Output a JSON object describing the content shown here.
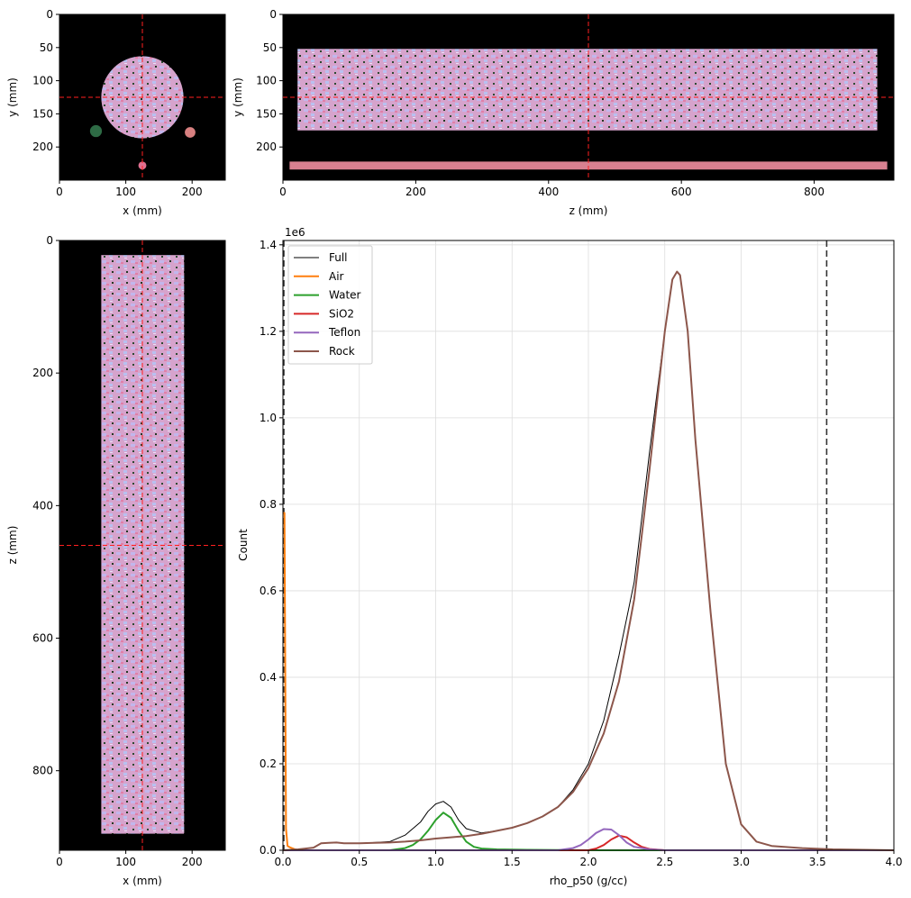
{
  "chart_data": [
    {
      "type": "image",
      "panel": "axial-slice",
      "xlabel": "x (mm)",
      "ylabel": "y (mm)",
      "xlim": [
        0,
        250
      ],
      "ylim": [
        250,
        0
      ],
      "xticks": [
        0,
        100,
        200
      ],
      "yticks": [
        0,
        50,
        100,
        150,
        200
      ],
      "crosshair": {
        "x": 125,
        "y": 125
      },
      "crosshair_color": "#ff2020",
      "features": [
        {
          "name": "rock-core",
          "shape": "circle",
          "cx": 125,
          "cy": 125,
          "r": 62,
          "color": "#d9a0c8"
        },
        {
          "name": "water-phantom",
          "shape": "circle",
          "cx": 55,
          "cy": 176,
          "r": 9,
          "color": "#2e6b45"
        },
        {
          "name": "teflon-phantom",
          "shape": "circle",
          "cx": 197,
          "cy": 178,
          "r": 8,
          "color": "#d88080"
        },
        {
          "name": "sio2-phantom",
          "shape": "circle",
          "cx": 125,
          "cy": 228,
          "r": 6,
          "color": "#e07090"
        }
      ]
    },
    {
      "type": "image",
      "panel": "side-slice",
      "xlabel": "z (mm)",
      "ylabel": "y (mm)",
      "xlim": [
        0,
        920
      ],
      "ylim": [
        250,
        0
      ],
      "xticks": [
        0,
        200,
        400,
        600,
        800
      ],
      "yticks": [
        0,
        50,
        100,
        150,
        200
      ],
      "crosshair": {
        "x": 460,
        "y": 125
      },
      "crosshair_color": "#ff2020",
      "features": [
        {
          "name": "rock-core",
          "shape": "rect",
          "x0": 22,
          "x1": 895,
          "y0": 52,
          "y1": 175,
          "color": "#d9a0c8"
        },
        {
          "name": "phantom-strip",
          "shape": "rect",
          "x0": 10,
          "x1": 910,
          "y0": 222,
          "y1": 234,
          "color": "#d88090"
        }
      ]
    },
    {
      "type": "image",
      "panel": "front-slice",
      "xlabel": "x (mm)",
      "ylabel": "z (mm)",
      "xlim": [
        0,
        250
      ],
      "ylim": [
        920,
        0
      ],
      "xticks": [
        0,
        100,
        200
      ],
      "yticks": [
        0,
        200,
        400,
        600,
        800
      ],
      "crosshair": {
        "x": 125,
        "y": 460
      },
      "crosshair_color": "#ff2020",
      "features": [
        {
          "name": "rock-core",
          "shape": "rect",
          "x0": 63,
          "x1": 188,
          "y0": 22,
          "y1": 895,
          "color": "#d9a0c8"
        }
      ]
    },
    {
      "type": "line",
      "panel": "histogram",
      "xlabel": "rho_p50 (g/cc)",
      "ylabel": "Count",
      "xlim": [
        0,
        4.0
      ],
      "ylim": [
        0,
        1.41
      ],
      "y_scale_label": "1e6",
      "xticks": [
        "0.0",
        "0.5",
        "1.0",
        "1.5",
        "2.0",
        "2.5",
        "3.0",
        "3.5",
        "4.0"
      ],
      "yticks": [
        "0.0",
        "0.2",
        "0.4",
        "0.6",
        "0.8",
        "1.0",
        "1.2",
        "1.4"
      ],
      "grid": true,
      "legend_position": "top-left",
      "vlines": [
        0.0,
        3.56
      ],
      "series": [
        {
          "name": "Full",
          "color": "#000000",
          "width": 1,
          "x": [
            0.0,
            0.1,
            0.2,
            0.25,
            0.3,
            0.35,
            0.4,
            0.5,
            0.6,
            0.7,
            0.8,
            0.9,
            0.95,
            1.0,
            1.05,
            1.1,
            1.15,
            1.2,
            1.3,
            1.4,
            1.5,
            1.6,
            1.7,
            1.8,
            1.9,
            2.0,
            2.1,
            2.2,
            2.3,
            2.4,
            2.5,
            2.55,
            2.58,
            2.6,
            2.65,
            2.7,
            2.8,
            2.9,
            3.0,
            3.1,
            3.2,
            3.4,
            3.6,
            3.8,
            4.0
          ],
          "y": [
            0.0,
            0.002,
            0.006,
            0.016,
            0.017,
            0.018,
            0.016,
            0.016,
            0.018,
            0.02,
            0.035,
            0.065,
            0.09,
            0.107,
            0.113,
            0.1,
            0.07,
            0.05,
            0.04,
            0.045,
            0.052,
            0.063,
            0.078,
            0.1,
            0.14,
            0.2,
            0.3,
            0.45,
            0.62,
            0.92,
            1.2,
            1.32,
            1.338,
            1.33,
            1.2,
            0.95,
            0.55,
            0.2,
            0.06,
            0.02,
            0.01,
            0.005,
            0.002,
            0.001,
            0.0
          ]
        },
        {
          "name": "Air",
          "color": "#ff7f0e",
          "width": 2,
          "x": [
            0.0,
            0.01,
            0.02,
            0.03,
            0.05,
            0.08,
            0.1
          ],
          "y": [
            0.78,
            0.78,
            0.05,
            0.01,
            0.006,
            0.002,
            0.0
          ]
        },
        {
          "name": "Water",
          "color": "#2ca02c",
          "width": 2,
          "x": [
            0.7,
            0.8,
            0.85,
            0.9,
            0.95,
            1.0,
            1.05,
            1.1,
            1.15,
            1.2,
            1.25,
            1.3,
            1.4,
            1.6,
            2.0,
            4.0
          ],
          "y": [
            0.0,
            0.005,
            0.012,
            0.025,
            0.045,
            0.07,
            0.087,
            0.075,
            0.045,
            0.02,
            0.008,
            0.004,
            0.002,
            0.001,
            0.0,
            0.0
          ]
        },
        {
          "name": "SiO2",
          "color": "#d62728",
          "width": 2,
          "x": [
            0.0,
            2.0,
            2.05,
            2.1,
            2.15,
            2.2,
            2.25,
            2.3,
            2.35,
            2.4,
            2.5,
            4.0
          ],
          "y": [
            0.0,
            0.0,
            0.004,
            0.012,
            0.025,
            0.034,
            0.03,
            0.018,
            0.008,
            0.003,
            0.0,
            0.0
          ]
        },
        {
          "name": "Teflon",
          "color": "#9467bd",
          "width": 2,
          "x": [
            0.0,
            1.8,
            1.9,
            1.95,
            2.0,
            2.05,
            2.1,
            2.15,
            2.2,
            2.25,
            2.3,
            2.4,
            2.5,
            4.0
          ],
          "y": [
            0.0,
            0.0,
            0.005,
            0.012,
            0.025,
            0.04,
            0.049,
            0.048,
            0.035,
            0.018,
            0.008,
            0.002,
            0.0,
            0.0
          ]
        },
        {
          "name": "Rock",
          "color": "#8c564b",
          "width": 2,
          "x": [
            0.0,
            0.1,
            0.2,
            0.25,
            0.3,
            0.35,
            0.4,
            0.5,
            0.6,
            0.7,
            0.8,
            0.9,
            1.0,
            1.1,
            1.2,
            1.3,
            1.4,
            1.5,
            1.6,
            1.7,
            1.8,
            1.9,
            2.0,
            2.1,
            2.2,
            2.3,
            2.4,
            2.5,
            2.55,
            2.58,
            2.6,
            2.65,
            2.7,
            2.8,
            2.9,
            3.0,
            3.1,
            3.2,
            3.4,
            3.6,
            3.8,
            4.0
          ],
          "y": [
            0.0,
            0.002,
            0.006,
            0.016,
            0.017,
            0.018,
            0.016,
            0.016,
            0.017,
            0.018,
            0.02,
            0.023,
            0.027,
            0.03,
            0.033,
            0.038,
            0.045,
            0.052,
            0.063,
            0.078,
            0.1,
            0.135,
            0.19,
            0.27,
            0.39,
            0.58,
            0.88,
            1.2,
            1.32,
            1.338,
            1.33,
            1.2,
            0.95,
            0.55,
            0.2,
            0.06,
            0.02,
            0.01,
            0.005,
            0.002,
            0.001,
            0.0
          ]
        }
      ]
    }
  ]
}
